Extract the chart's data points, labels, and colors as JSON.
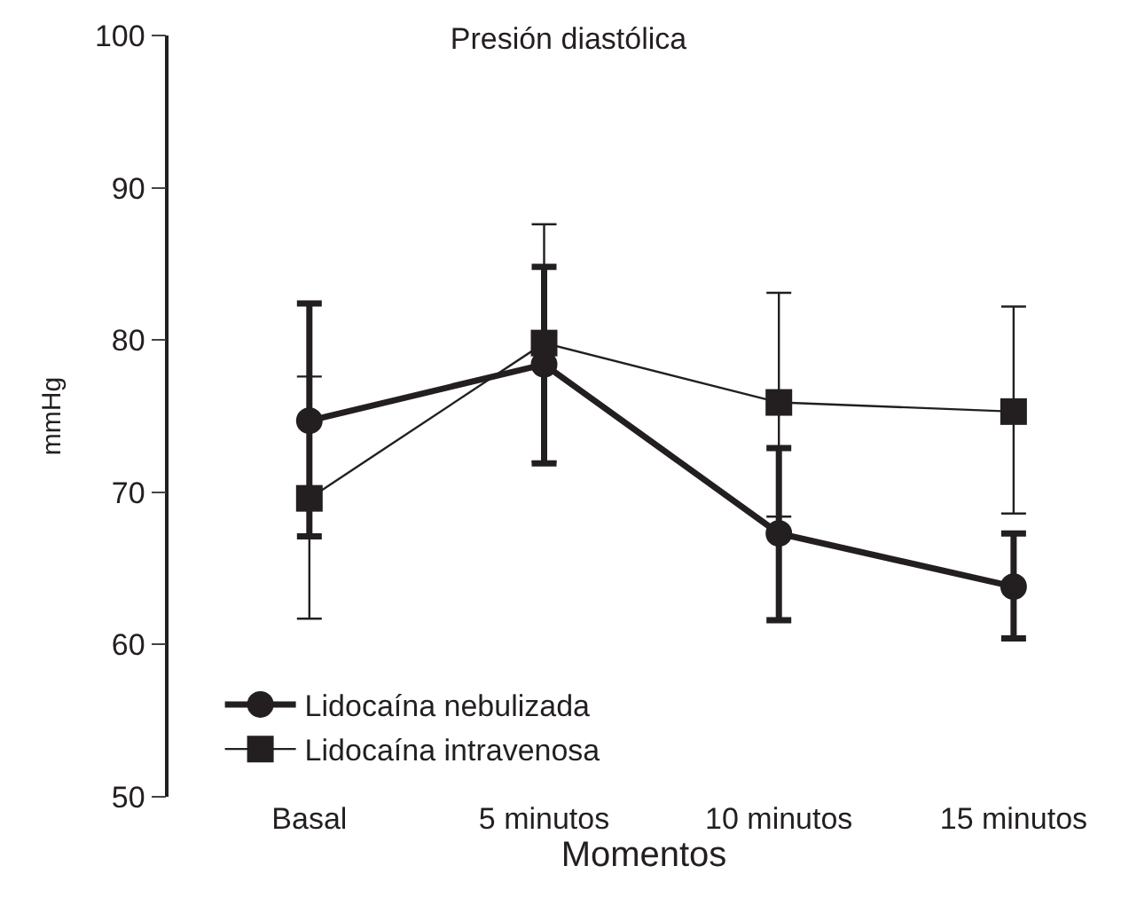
{
  "chart_data": {
    "type": "line",
    "title": "Presión diastólica",
    "xlabel": "Momentos",
    "ylabel": "mmHg",
    "categories": [
      "Basal",
      "5 minutos",
      "10 minutos",
      "15 minutos"
    ],
    "series": [
      {
        "name": "Lidocaína nebulizada",
        "color": "#231f20",
        "marker": "circle",
        "values": [
          74.7,
          78.4,
          67.3,
          63.8
        ],
        "errors": [
          [
            67.1,
            82.4
          ],
          [
            71.9,
            84.8
          ],
          [
            61.6,
            72.9
          ],
          [
            60.4,
            67.3
          ]
        ]
      },
      {
        "name": "Lidocaína intravenosa",
        "color": "#231f20",
        "marker": "square",
        "values": [
          69.6,
          79.8,
          75.9,
          75.3
        ],
        "errors": [
          [
            61.7,
            77.6
          ],
          [
            72.0,
            87.6
          ],
          [
            68.4,
            83.1
          ],
          [
            68.6,
            82.2
          ]
        ]
      }
    ],
    "ylim": [
      50,
      100
    ],
    "yticks": [
      50,
      60,
      70,
      80,
      90,
      100
    ],
    "legend": "bottom left",
    "line_style": "solid"
  }
}
